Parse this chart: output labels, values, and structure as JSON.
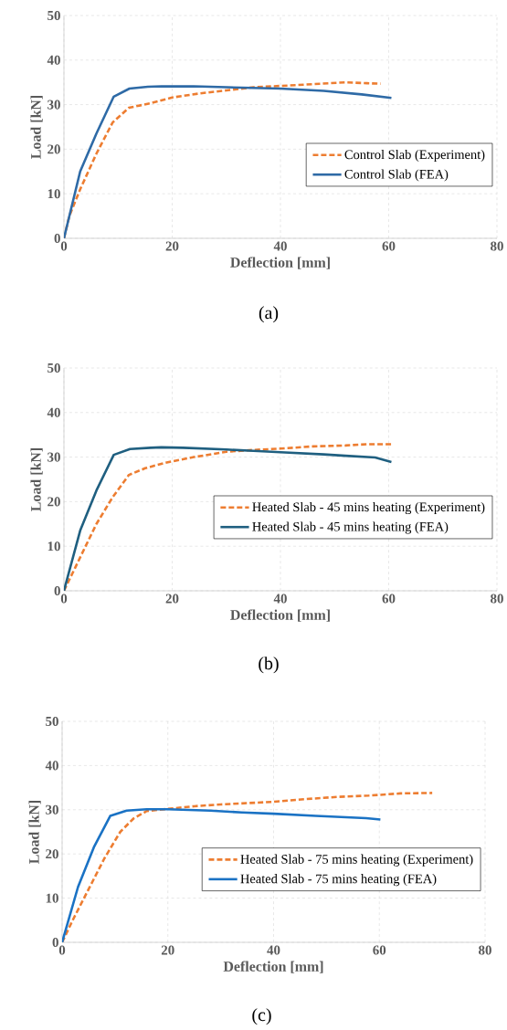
{
  "chart_data": [
    {
      "type": "line",
      "xlabel": "Deflection [mm]",
      "ylabel": "Load [kN]",
      "xlim": [
        0,
        80
      ],
      "ylim": [
        0,
        50
      ],
      "xticks": [
        0,
        20,
        40,
        60,
        80
      ],
      "yticks": [
        0,
        10,
        20,
        30,
        40,
        50
      ],
      "grid": true,
      "legend": "right",
      "marker": "none",
      "annotations": [
        "(a)"
      ],
      "series": [
        {
          "name": "Control Slab (Experiment)",
          "color": "#ed7d31",
          "line_style": "dashed",
          "x": [
            0,
            1,
            3,
            6,
            9,
            12,
            16,
            20,
            25,
            30,
            35,
            40,
            46,
            52,
            56,
            58.5
          ],
          "values": [
            0,
            5,
            11,
            19,
            26,
            29.3,
            30.3,
            31.6,
            32.5,
            33.2,
            33.9,
            34.2,
            34.6,
            35,
            34.8,
            34.7
          ]
        },
        {
          "name": "Control Slab (FEA)",
          "color": "#2e6aa6",
          "line_style": "solid",
          "x": [
            0,
            3,
            6,
            9.2,
            12.1,
            15.5,
            18,
            24,
            30,
            40,
            48,
            55,
            60.5
          ],
          "values": [
            0,
            15,
            23.5,
            31.8,
            33.6,
            34,
            34.1,
            34.1,
            33.9,
            33.6,
            33.1,
            32.3,
            31.5
          ]
        }
      ]
    },
    {
      "type": "line",
      "xlabel": "Deflection [mm]",
      "ylabel": "Load [kN]",
      "xlim": [
        0,
        80
      ],
      "ylim": [
        0,
        50
      ],
      "xticks": [
        0,
        20,
        40,
        60,
        80
      ],
      "yticks": [
        0,
        10,
        20,
        30,
        40,
        50
      ],
      "grid": true,
      "legend": "right",
      "marker": "none",
      "annotations": [
        "(b)"
      ],
      "series": [
        {
          "name": "Heated Slab - 45 mins heating (Experiment)",
          "color": "#ed7d31",
          "line_style": "dashed",
          "x": [
            0,
            2,
            4,
            6,
            9,
            12,
            15,
            19,
            24,
            30,
            35,
            40,
            46,
            52,
            56,
            60.5
          ],
          "values": [
            0,
            5,
            10,
            15,
            21,
            26,
            27.5,
            28.8,
            30,
            31.2,
            31.6,
            31.9,
            32.4,
            32.6,
            32.9,
            32.9
          ]
        },
        {
          "name": "Heated Slab - 45 mins heating (FEA)",
          "color": "#1f5f80",
          "line_style": "solid",
          "x": [
            0,
            3,
            6,
            9.2,
            12.2,
            16,
            18,
            22,
            30,
            35,
            40,
            48,
            52,
            57.5,
            60.5
          ],
          "values": [
            0,
            13.5,
            22.5,
            30.5,
            31.8,
            32.1,
            32.2,
            32.1,
            31.7,
            31.4,
            31.1,
            30.6,
            30.3,
            29.9,
            28.9
          ]
        }
      ]
    },
    {
      "type": "line",
      "xlabel": "Deflection [mm]",
      "ylabel": "Load [kN]",
      "xlim": [
        0,
        80
      ],
      "ylim": [
        0,
        50
      ],
      "xticks": [
        0,
        20,
        40,
        60,
        80
      ],
      "yticks": [
        0,
        10,
        20,
        30,
        40,
        50
      ],
      "grid": true,
      "legend": "right",
      "marker": "none",
      "annotations": [
        "(c)"
      ],
      "series": [
        {
          "name": "Heated Slab - 75 mins heating (Experiment)",
          "color": "#ed7d31",
          "line_style": "dashed",
          "x": [
            0,
            2,
            5,
            8,
            11,
            13.5,
            16,
            20,
            25,
            30,
            40,
            46,
            52,
            58,
            64,
            70
          ],
          "values": [
            0,
            5,
            12,
            19,
            25,
            28,
            29.7,
            30.2,
            30.8,
            31.2,
            31.8,
            32.4,
            32.9,
            33.2,
            33.7,
            33.8
          ]
        },
        {
          "name": "Heated Slab - 75 mins heating (FEA)",
          "color": "#1a72c4",
          "line_style": "solid",
          "x": [
            0,
            3,
            6,
            9.1,
            12.2,
            16,
            20,
            28,
            34,
            40,
            48,
            57.5,
            60.2
          ],
          "values": [
            0,
            12.5,
            21.5,
            28.6,
            29.8,
            30.1,
            30.1,
            29.8,
            29.4,
            29.1,
            28.6,
            28.1,
            27.8
          ]
        }
      ]
    }
  ]
}
